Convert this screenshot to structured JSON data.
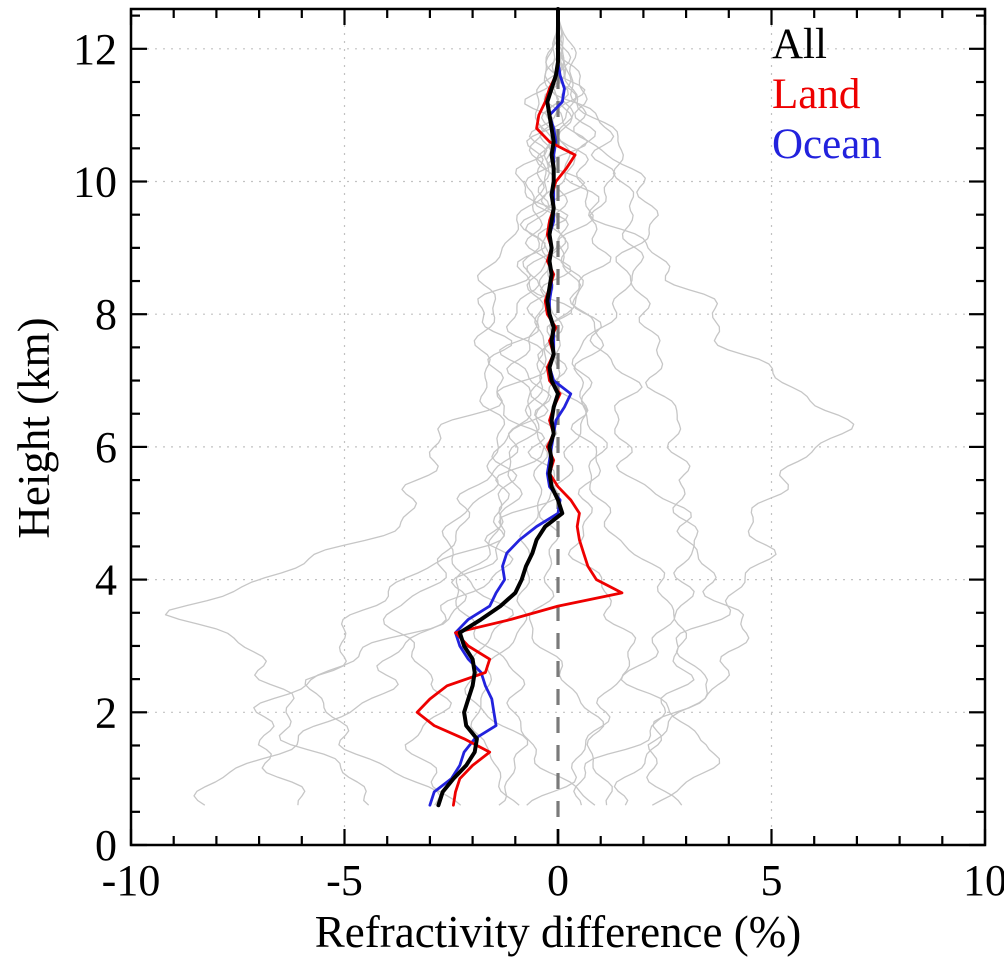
{
  "chart_data": {
    "type": "line",
    "title": "",
    "xlabel": "Refractivity difference (%)",
    "ylabel": "Height (km)",
    "xlim": [
      -10,
      10
    ],
    "ylim": [
      0,
      12.6
    ],
    "x_ticks": [
      -10,
      -5,
      0,
      5,
      10
    ],
    "y_ticks": [
      0,
      2,
      4,
      6,
      8,
      10,
      12
    ],
    "x_minor_step": 1,
    "y_minor_step": 0.5,
    "grid": "dotted",
    "grid_x": [
      -5,
      5
    ],
    "grid_y": [
      2,
      4,
      6,
      8,
      10,
      12
    ],
    "grid_color": "#c2c2c2",
    "zero_line": {
      "x": 0,
      "style": "dashed",
      "color": "#7a7a7a"
    },
    "legend": {
      "position": "top-right",
      "entries": [
        {
          "label": "All",
          "color": "#000000"
        },
        {
          "label": "Land",
          "color": "#ee0000"
        },
        {
          "label": "Ocean",
          "color": "#2222dd"
        }
      ]
    },
    "heights_km": [
      0.6,
      0.8,
      1.0,
      1.2,
      1.4,
      1.6,
      1.8,
      2.0,
      2.2,
      2.4,
      2.6,
      2.8,
      3.0,
      3.2,
      3.4,
      3.6,
      3.8,
      4.0,
      4.2,
      4.4,
      4.6,
      4.8,
      5.0,
      5.2,
      5.4,
      5.6,
      5.8,
      6.0,
      6.2,
      6.4,
      6.6,
      6.8,
      7.0,
      7.2,
      7.4,
      7.6,
      7.8,
      8.0,
      8.2,
      8.4,
      8.6,
      8.8,
      9.0,
      9.2,
      9.4,
      9.6,
      9.8,
      10.0,
      10.2,
      10.4,
      10.6,
      10.8,
      11.0,
      11.2,
      11.4,
      11.6,
      11.8,
      12.0,
      12.2,
      12.4,
      12.6
    ],
    "series": [
      {
        "name": "All",
        "color": "#000000",
        "width": 4,
        "values": [
          -2.8,
          -2.7,
          -2.45,
          -2.15,
          -1.95,
          -1.9,
          -2.15,
          -2.2,
          -2.1,
          -2.0,
          -1.95,
          -2.0,
          -2.2,
          -2.3,
          -1.8,
          -1.35,
          -1.0,
          -0.85,
          -0.75,
          -0.6,
          -0.5,
          -0.3,
          0.1,
          0.0,
          -0.15,
          -0.2,
          -0.15,
          -0.2,
          -0.1,
          -0.15,
          -0.1,
          0.0,
          -0.15,
          -0.2,
          -0.1,
          -0.15,
          -0.1,
          -0.2,
          -0.25,
          -0.2,
          -0.15,
          -0.2,
          -0.15,
          -0.2,
          -0.15,
          -0.1,
          -0.15,
          -0.1,
          -0.1,
          -0.15,
          -0.1,
          -0.15,
          -0.2,
          -0.25,
          -0.15,
          -0.05,
          0.0,
          0.0,
          0.0,
          0.0,
          0.0
        ]
      },
      {
        "name": "Land",
        "color": "#ee0000",
        "width": 2.8,
        "values": [
          -2.45,
          -2.4,
          -2.3,
          -2.0,
          -1.6,
          -2.2,
          -2.9,
          -3.3,
          -3.0,
          -2.6,
          -1.7,
          -1.6,
          -2.1,
          -2.4,
          -1.1,
          0.0,
          1.5,
          0.9,
          0.7,
          0.6,
          0.5,
          0.45,
          0.5,
          0.3,
          0.0,
          -0.2,
          -0.1,
          -0.25,
          -0.1,
          -0.2,
          -0.1,
          0.05,
          -0.2,
          -0.25,
          -0.1,
          -0.2,
          -0.05,
          -0.25,
          -0.3,
          -0.2,
          -0.1,
          -0.25,
          -0.15,
          -0.25,
          -0.2,
          -0.1,
          -0.15,
          -0.05,
          0.2,
          0.4,
          -0.2,
          -0.5,
          -0.45,
          -0.3,
          -0.2,
          -0.05,
          0.0,
          0.0,
          0.0,
          0.0,
          0.0
        ]
      },
      {
        "name": "Ocean",
        "color": "#2222dd",
        "width": 2.8,
        "values": [
          -3.0,
          -2.9,
          -2.5,
          -2.3,
          -2.2,
          -1.95,
          -1.45,
          -1.5,
          -1.55,
          -1.7,
          -1.8,
          -2.1,
          -2.3,
          -2.4,
          -2.1,
          -1.6,
          -1.45,
          -1.25,
          -1.3,
          -1.2,
          -0.9,
          -0.5,
          0.0,
          0.05,
          -0.2,
          -0.25,
          -0.2,
          -0.15,
          -0.1,
          -0.05,
          0.15,
          0.3,
          -0.1,
          -0.2,
          -0.1,
          -0.1,
          -0.1,
          -0.2,
          -0.2,
          -0.15,
          -0.15,
          -0.2,
          -0.15,
          -0.2,
          -0.1,
          -0.1,
          -0.1,
          -0.1,
          -0.1,
          -0.1,
          -0.05,
          -0.1,
          -0.2,
          0.1,
          0.15,
          0.05,
          0.0,
          0.0,
          0.0,
          0.0,
          0.0
        ]
      }
    ],
    "background_profiles": {
      "color": "#c6c6c6",
      "width": 1.3,
      "heights_km": [
        0.6,
        1.5,
        2.5,
        3.5,
        4.5,
        5.5,
        6.5,
        7.5,
        8.5,
        9.5,
        10.5,
        11.5,
        12.5
      ],
      "profiles": [
        {
          "seed": 1,
          "wiggle": 0.8,
          "values": [
            -8.2,
            -6.5,
            -4.0,
            -2.5,
            -1.5,
            -0.8,
            -0.5,
            -0.6,
            -0.4,
            -0.2,
            -0.1,
            0.0,
            0.0
          ]
        },
        {
          "seed": 2,
          "wiggle": 0.9,
          "values": [
            -6.0,
            -7.5,
            -5.5,
            -3.0,
            -1.0,
            -0.5,
            -0.8,
            -0.5,
            -0.3,
            -0.4,
            -0.1,
            -0.05,
            0.0
          ]
        },
        {
          "seed": 3,
          "wiggle": 0.7,
          "values": [
            -3.0,
            -4.5,
            -6.0,
            -4.5,
            -2.0,
            -1.2,
            -0.6,
            -0.8,
            -0.5,
            -0.3,
            -0.2,
            0.0,
            0.0
          ]
        },
        {
          "seed": 4,
          "wiggle": 0.6,
          "values": [
            -2.0,
            -3.5,
            -2.8,
            -3.8,
            -2.6,
            -1.5,
            -1.0,
            -0.5,
            -0.6,
            -0.3,
            -0.5,
            -0.1,
            0.0
          ]
        },
        {
          "seed": 5,
          "wiggle": 0.4,
          "values": [
            -1.0,
            -2.0,
            -1.5,
            -1.0,
            -0.5,
            -0.6,
            -0.4,
            -0.3,
            -0.2,
            -0.1,
            -0.3,
            0.0,
            0.0
          ]
        },
        {
          "seed": 6,
          "wiggle": 0.5,
          "values": [
            0.5,
            -0.5,
            -1.2,
            -2.2,
            -1.8,
            -1.0,
            -0.4,
            -0.2,
            -0.4,
            -0.2,
            0.0,
            0.1,
            0.0
          ]
        },
        {
          "seed": 7,
          "wiggle": 0.5,
          "values": [
            1.5,
            0.8,
            0.2,
            -0.5,
            -0.3,
            0.2,
            0.3,
            0.1,
            0.2,
            0.1,
            0.0,
            0.0,
            0.0
          ]
        },
        {
          "seed": 8,
          "wiggle": 0.6,
          "values": [
            2.5,
            3.5,
            2.0,
            1.0,
            0.8,
            0.5,
            0.8,
            0.6,
            0.4,
            0.5,
            0.3,
            0.1,
            0.0
          ]
        },
        {
          "seed": 9,
          "wiggle": 0.7,
          "values": [
            1.0,
            2.5,
            3.5,
            4.5,
            3.0,
            2.0,
            1.5,
            1.0,
            0.8,
            0.6,
            0.8,
            0.2,
            0.0
          ]
        },
        {
          "seed": 10,
          "wiggle": 0.8,
          "values": [
            0.5,
            1.5,
            2.8,
            3.8,
            4.5,
            5.5,
            6.3,
            4.5,
            2.5,
            1.5,
            0.8,
            0.3,
            0.0
          ]
        },
        {
          "seed": 11,
          "wiggle": 0.6,
          "values": [
            -0.5,
            0.5,
            1.8,
            2.5,
            3.5,
            2.5,
            3.0,
            2.0,
            1.8,
            2.2,
            1.0,
            0.4,
            0.0
          ]
        },
        {
          "seed": 12,
          "wiggle": 0.9,
          "values": [
            -4.5,
            -5.5,
            -7.0,
            -8.5,
            -5.0,
            -3.0,
            -2.0,
            -1.5,
            -1.0,
            -0.5,
            -0.3,
            -0.1,
            0.0
          ]
        },
        {
          "seed": 13,
          "wiggle": 0.5,
          "values": [
            3.0,
            2.0,
            3.5,
            2.8,
            1.5,
            1.0,
            0.5,
            0.8,
            1.5,
            2.0,
            1.2,
            0.3,
            0.0
          ]
        },
        {
          "seed": 14,
          "wiggle": 0.5,
          "values": [
            -1.5,
            -1.0,
            -2.0,
            -1.5,
            -2.5,
            -1.8,
            -1.2,
            -2.0,
            -1.5,
            -0.8,
            -0.4,
            -0.2,
            0.0
          ]
        }
      ]
    }
  }
}
